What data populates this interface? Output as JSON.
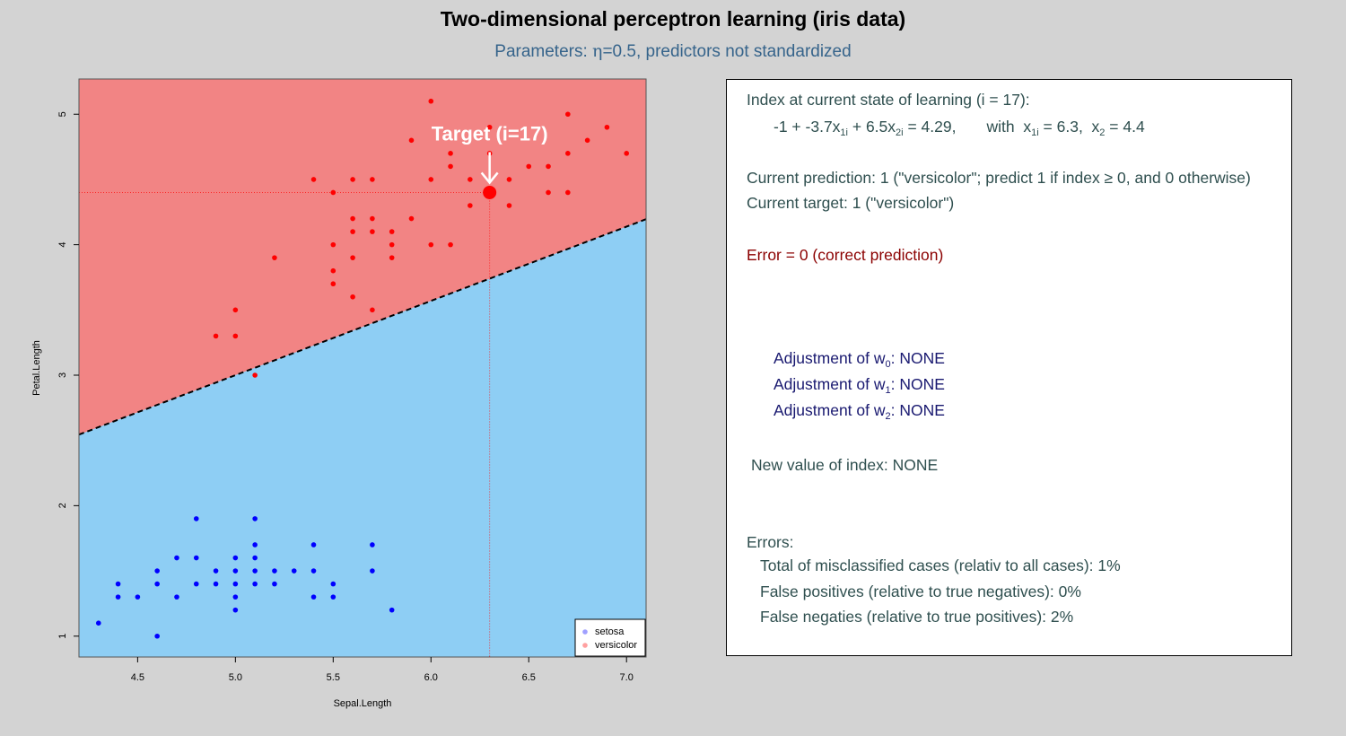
{
  "title": "Two-dimensional perceptron learning (iris data)",
  "subtitle": "Parameters: η=0.5, predictors not standardized",
  "colors": {
    "region_versicolor": "#f28484",
    "region_setosa": "#8ecef4",
    "point_versicolor": "#ff0000",
    "point_setosa": "#0000ff",
    "text_main": "#2f4f4f",
    "text_error": "#8b0000",
    "text_adjust": "#191970",
    "subtitle": "#36648b"
  },
  "chart_data": {
    "type": "scatter",
    "xlabel": "Sepal.Length",
    "ylabel": "Petal.Length",
    "xlim": [
      4.2,
      7.1
    ],
    "ylim": [
      0.84,
      5.27
    ],
    "x_ticks": [
      "4.5",
      "5.0",
      "5.5",
      "6.0",
      "6.5",
      "7.0"
    ],
    "y_ticks": [
      "1",
      "2",
      "3",
      "4",
      "5"
    ],
    "grid": false,
    "legend_position": "bottom-right",
    "decision_boundary": {
      "w0": -1,
      "w1": -3.7,
      "w2": 6.5,
      "style": "dashed"
    },
    "target": {
      "label": "Target (i=17)",
      "x": 6.3,
      "y": 4.4
    },
    "series": [
      {
        "name": "setosa",
        "color": "#0000ff",
        "legend_color": "#a0a0ff",
        "points": [
          [
            4.3,
            1.1
          ],
          [
            4.4,
            1.4
          ],
          [
            4.4,
            1.3
          ],
          [
            4.5,
            1.3
          ],
          [
            4.6,
            1.5
          ],
          [
            4.6,
            1.4
          ],
          [
            4.6,
            1.0
          ],
          [
            4.7,
            1.6
          ],
          [
            4.7,
            1.3
          ],
          [
            4.8,
            1.9
          ],
          [
            4.8,
            1.6
          ],
          [
            4.8,
            1.4
          ],
          [
            4.9,
            1.5
          ],
          [
            4.9,
            1.4
          ],
          [
            5.0,
            1.6
          ],
          [
            5.0,
            1.5
          ],
          [
            5.0,
            1.4
          ],
          [
            5.0,
            1.3
          ],
          [
            5.0,
            1.2
          ],
          [
            5.1,
            1.9
          ],
          [
            5.1,
            1.7
          ],
          [
            5.1,
            1.6
          ],
          [
            5.1,
            1.5
          ],
          [
            5.1,
            1.4
          ],
          [
            5.2,
            1.5
          ],
          [
            5.2,
            1.4
          ],
          [
            5.3,
            1.5
          ],
          [
            5.4,
            1.7
          ],
          [
            5.4,
            1.5
          ],
          [
            5.4,
            1.3
          ],
          [
            5.5,
            1.4
          ],
          [
            5.5,
            1.3
          ],
          [
            5.7,
            1.7
          ],
          [
            5.7,
            1.5
          ],
          [
            5.8,
            1.2
          ]
        ]
      },
      {
        "name": "versicolor",
        "color": "#ff0000",
        "legend_color": "#ffa0a0",
        "points": [
          [
            4.9,
            3.3
          ],
          [
            5.0,
            3.5
          ],
          [
            5.0,
            3.3
          ],
          [
            5.1,
            3.0
          ],
          [
            5.2,
            3.9
          ],
          [
            5.4,
            4.5
          ],
          [
            5.5,
            4.4
          ],
          [
            5.5,
            4.0
          ],
          [
            5.5,
            3.8
          ],
          [
            5.5,
            3.7
          ],
          [
            5.6,
            4.5
          ],
          [
            5.6,
            4.2
          ],
          [
            5.6,
            4.1
          ],
          [
            5.6,
            3.9
          ],
          [
            5.6,
            3.6
          ],
          [
            5.7,
            4.5
          ],
          [
            5.7,
            4.2
          ],
          [
            5.7,
            4.1
          ],
          [
            5.7,
            3.5
          ],
          [
            5.8,
            4.1
          ],
          [
            5.8,
            4.0
          ],
          [
            5.8,
            3.9
          ],
          [
            5.9,
            4.8
          ],
          [
            5.9,
            4.2
          ],
          [
            6.0,
            5.1
          ],
          [
            6.0,
            4.5
          ],
          [
            6.0,
            4.0
          ],
          [
            6.1,
            4.7
          ],
          [
            6.1,
            4.6
          ],
          [
            6.1,
            4.0
          ],
          [
            6.2,
            4.5
          ],
          [
            6.2,
            4.3
          ],
          [
            6.3,
            4.9
          ],
          [
            6.3,
            4.7
          ],
          [
            6.4,
            4.5
          ],
          [
            6.4,
            4.3
          ],
          [
            6.5,
            4.6
          ],
          [
            6.6,
            4.6
          ],
          [
            6.6,
            4.4
          ],
          [
            6.7,
            5.0
          ],
          [
            6.7,
            4.7
          ],
          [
            6.7,
            4.4
          ],
          [
            6.8,
            4.8
          ],
          [
            6.9,
            4.9
          ],
          [
            7.0,
            4.7
          ]
        ]
      }
    ]
  },
  "panel": {
    "index_header": "Index at current state of learning (i = 17):",
    "eq_w0": "-1",
    "eq_w1": "-3.7",
    "eq_w2": "6.5",
    "eq_value": "4.29",
    "eq_x1": "6.3",
    "eq_x2": "4.4",
    "prediction": "Current prediction: 1 (\"versicolor\"; predict 1 if index ≥ 0, and 0 otherwise)",
    "target": "Current target: 1 (\"versicolor\")",
    "error": "Error = 0 (correct prediction)",
    "adj_prefix": "Adjustment of w",
    "adj0": "NONE",
    "adj1": "NONE",
    "adj2": "NONE",
    "new_index": "New value of index: NONE",
    "errors_header": "Errors:",
    "total_misclassified": "Total of misclassified cases (relativ to all cases): 1%",
    "false_positives": "False positives (relative to true negatives): 0%",
    "false_negatives": "False negaties (relative to true positives): 2%"
  }
}
